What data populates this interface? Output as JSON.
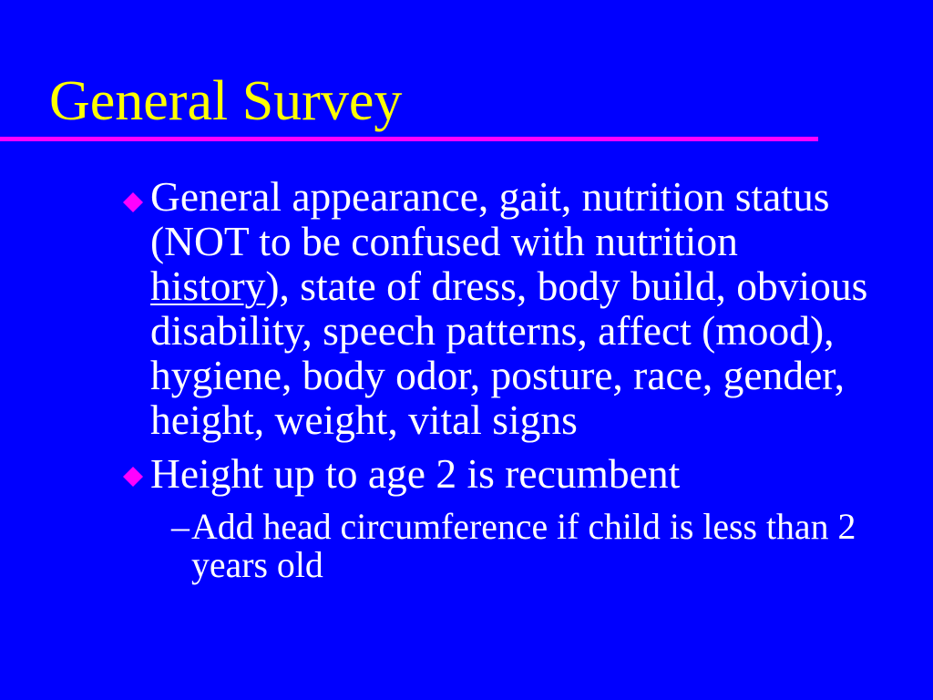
{
  "slide": {
    "title": "General Survey",
    "colors": {
      "background": "#0000FF",
      "title": "#FFFF00",
      "accent": "#FF00FF",
      "text": "#FFFFFF"
    },
    "bullets": [
      {
        "icon": "diamond-bullet-icon",
        "lines": [
          "General appearance, gait, nutrition status",
          "(NOT to be confused with nutrition",
          {
            "underlined": "history",
            "rest": "), state of dress, body build, obvious"
          },
          "disability, speech patterns, affect (mood),",
          "hygiene, body odor, posture, race, gender,",
          "height, weight, vital signs"
        ]
      },
      {
        "icon": "diamond-bullet-icon",
        "lines": [
          "Height up to age 2 is recumbent"
        ],
        "sub_bullets": [
          {
            "marker": "–",
            "lines": [
              "Add head circumference if child is less than 2",
              "years old"
            ]
          }
        ]
      }
    ]
  }
}
